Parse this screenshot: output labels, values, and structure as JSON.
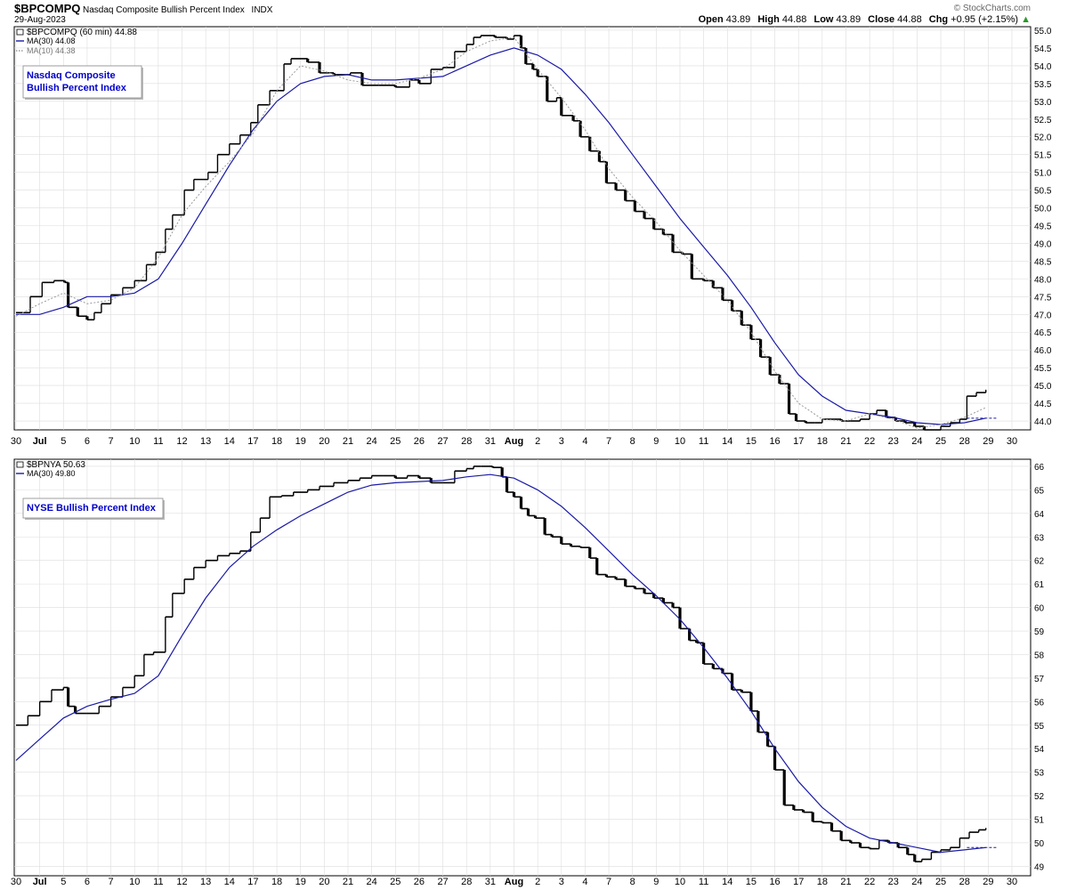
{
  "header": {
    "symbol": "$BPCOMPQ",
    "name": "Nasdaq Composite Bullish Percent Index",
    "exchange": "INDX",
    "date": "29-Aug-2023",
    "watermark": "© StockCharts.com",
    "quote": [
      {
        "label": "Open",
        "value": "43.89"
      },
      {
        "label": "High",
        "value": "44.88"
      },
      {
        "label": "Low",
        "value": "43.89"
      },
      {
        "label": "Close",
        "value": "44.88"
      },
      {
        "label": "Chg",
        "value": "+0.95 (+2.15%)",
        "arrow": "▲"
      }
    ]
  },
  "colors": {
    "ma30": "#1a1aa6",
    "ma10": "#999999",
    "candle": "#000000",
    "grid": "#dddddd",
    "legend_box_text": "#0000cc"
  },
  "x_axis": {
    "labels": [
      "30",
      "Jul",
      "5",
      "6",
      "7",
      "10",
      "11",
      "12",
      "13",
      "14",
      "17",
      "18",
      "19",
      "20",
      "21",
      "24",
      "25",
      "26",
      "27",
      "28",
      "31",
      "Aug",
      "2",
      "3",
      "4",
      "7",
      "8",
      "9",
      "10",
      "11",
      "14",
      "15",
      "16",
      "17",
      "18",
      "21",
      "22",
      "23",
      "24",
      "25",
      "28",
      "29",
      "30"
    ],
    "bold": [
      "Jul",
      "Aug"
    ]
  },
  "chart_data": [
    {
      "type": "ohlc",
      "title": "$BPCOMPQ (60 min) 44.88",
      "legend_box": [
        "Nasdaq Composite",
        "Bullish Percent Index"
      ],
      "legend": [
        {
          "name": "MA(30) 44.08",
          "style": "solid",
          "color": "#1a1aa6"
        },
        {
          "name": "MA(10) 44.38",
          "style": "dotted",
          "color": "#999999"
        }
      ],
      "ylim": [
        43.75,
        55.1
      ],
      "y_ticks": [
        "44.0",
        "44.5",
        "45.0",
        "45.5",
        "46.0",
        "46.5",
        "47.0",
        "47.5",
        "48.0",
        "48.5",
        "49.0",
        "49.5",
        "50.0",
        "50.5",
        "51.0",
        "51.5",
        "52.0",
        "52.5",
        "53.0",
        "53.5",
        "54.0",
        "54.5",
        "55.0"
      ],
      "close": [
        [
          0,
          47.05
        ],
        [
          0.6,
          47.5
        ],
        [
          1.1,
          47.9
        ],
        [
          1.6,
          47.95
        ],
        [
          2.05,
          47.9
        ],
        [
          2.2,
          47.2
        ],
        [
          2.6,
          46.95
        ],
        [
          3.0,
          46.85
        ],
        [
          3.3,
          47.05
        ],
        [
          3.6,
          47.3
        ],
        [
          4.0,
          47.55
        ],
        [
          4.5,
          47.75
        ],
        [
          5.0,
          47.95
        ],
        [
          5.5,
          48.4
        ],
        [
          5.9,
          48.75
        ],
        [
          6.3,
          49.4
        ],
        [
          6.6,
          49.8
        ],
        [
          7.1,
          50.5
        ],
        [
          7.5,
          50.8
        ],
        [
          8.1,
          51.0
        ],
        [
          8.5,
          51.5
        ],
        [
          9.0,
          51.8
        ],
        [
          9.45,
          52.05
        ],
        [
          9.9,
          52.4
        ],
        [
          10.2,
          52.9
        ],
        [
          10.7,
          53.3
        ],
        [
          11.3,
          54.05
        ],
        [
          11.6,
          54.2
        ],
        [
          12.3,
          54.1
        ],
        [
          12.8,
          53.8
        ],
        [
          13.4,
          53.75
        ],
        [
          14.1,
          53.8
        ],
        [
          14.6,
          53.45
        ],
        [
          15.3,
          53.45
        ],
        [
          16.0,
          53.4
        ],
        [
          16.6,
          53.6
        ],
        [
          17.0,
          53.5
        ],
        [
          17.5,
          53.9
        ],
        [
          18.0,
          53.95
        ],
        [
          18.5,
          54.4
        ],
        [
          19.0,
          54.6
        ],
        [
          19.3,
          54.8
        ],
        [
          19.6,
          54.85
        ],
        [
          20.2,
          54.8
        ],
        [
          20.7,
          54.75
        ],
        [
          21.0,
          54.85
        ],
        [
          21.3,
          54.5
        ],
        [
          21.5,
          54.05
        ],
        [
          21.8,
          53.9
        ],
        [
          22.0,
          53.7
        ],
        [
          22.4,
          53.0
        ],
        [
          22.8,
          53.1
        ],
        [
          23.0,
          52.6
        ],
        [
          23.5,
          52.45
        ],
        [
          23.8,
          52.0
        ],
        [
          24.2,
          51.6
        ],
        [
          24.6,
          51.3
        ],
        [
          24.9,
          50.7
        ],
        [
          25.3,
          50.5
        ],
        [
          25.7,
          50.2
        ],
        [
          26.1,
          49.9
        ],
        [
          26.5,
          49.7
        ],
        [
          26.9,
          49.4
        ],
        [
          27.3,
          49.25
        ],
        [
          27.7,
          48.75
        ],
        [
          28.1,
          48.7
        ],
        [
          28.5,
          48.0
        ],
        [
          29.0,
          47.95
        ],
        [
          29.4,
          47.75
        ],
        [
          29.8,
          47.4
        ],
        [
          30.2,
          47.1
        ],
        [
          30.6,
          46.7
        ],
        [
          31.0,
          46.3
        ],
        [
          31.4,
          45.8
        ],
        [
          31.8,
          45.3
        ],
        [
          32.2,
          45.05
        ],
        [
          32.6,
          44.2
        ],
        [
          32.9,
          44.0
        ],
        [
          33.3,
          43.95
        ],
        [
          33.7,
          43.95
        ],
        [
          34.0,
          44.05
        ],
        [
          34.4,
          44.05
        ],
        [
          34.8,
          44.0
        ],
        [
          35.2,
          44.0
        ],
        [
          35.6,
          44.05
        ],
        [
          36.0,
          44.2
        ],
        [
          36.3,
          44.3
        ],
        [
          36.7,
          44.1
        ],
        [
          37.1,
          44.0
        ],
        [
          37.5,
          43.95
        ],
        [
          37.9,
          43.85
        ],
        [
          38.3,
          43.75
        ],
        [
          38.7,
          43.75
        ],
        [
          39.0,
          43.85
        ],
        [
          39.4,
          43.95
        ],
        [
          39.8,
          44.05
        ],
        [
          40.1,
          44.7
        ],
        [
          40.5,
          44.8
        ],
        [
          40.9,
          44.88
        ]
      ],
      "ma30": [
        [
          0,
          47.0
        ],
        [
          1,
          47.0
        ],
        [
          2,
          47.2
        ],
        [
          3,
          47.5
        ],
        [
          4,
          47.5
        ],
        [
          5,
          47.6
        ],
        [
          6,
          48.0
        ],
        [
          7,
          49.0
        ],
        [
          8,
          50.1
        ],
        [
          9,
          51.2
        ],
        [
          10,
          52.2
        ],
        [
          11,
          53.0
        ],
        [
          12,
          53.5
        ],
        [
          13,
          53.7
        ],
        [
          14,
          53.75
        ],
        [
          15,
          53.6
        ],
        [
          16,
          53.6
        ],
        [
          17,
          53.65
        ],
        [
          18,
          53.7
        ],
        [
          19,
          54.0
        ],
        [
          20,
          54.3
        ],
        [
          21,
          54.5
        ],
        [
          22,
          54.3
        ],
        [
          23,
          53.9
        ],
        [
          24,
          53.2
        ],
        [
          25,
          52.4
        ],
        [
          26,
          51.5
        ],
        [
          27,
          50.6
        ],
        [
          28,
          49.7
        ],
        [
          29,
          48.9
        ],
        [
          30,
          48.1
        ],
        [
          31,
          47.2
        ],
        [
          32,
          46.2
        ],
        [
          33,
          45.3
        ],
        [
          34,
          44.7
        ],
        [
          35,
          44.3
        ],
        [
          36,
          44.2
        ],
        [
          37,
          44.1
        ],
        [
          38,
          43.95
        ],
        [
          39,
          43.9
        ],
        [
          40,
          43.95
        ],
        [
          40.9,
          44.08
        ]
      ],
      "ma10": [
        [
          0,
          46.95
        ],
        [
          1,
          47.3
        ],
        [
          2,
          47.6
        ],
        [
          3,
          47.3
        ],
        [
          4,
          47.4
        ],
        [
          5,
          47.75
        ],
        [
          6,
          48.6
        ],
        [
          7,
          49.8
        ],
        [
          8,
          50.6
        ],
        [
          9,
          51.3
        ],
        [
          10,
          52.1
        ],
        [
          11,
          53.3
        ],
        [
          12,
          54.0
        ],
        [
          13,
          53.85
        ],
        [
          14,
          53.6
        ],
        [
          15,
          53.5
        ],
        [
          16,
          53.5
        ],
        [
          17,
          53.65
        ],
        [
          18,
          53.9
        ],
        [
          19,
          54.4
        ],
        [
          20,
          54.7
        ],
        [
          21,
          54.8
        ],
        [
          22,
          53.9
        ],
        [
          23,
          53.1
        ],
        [
          24,
          52.2
        ],
        [
          25,
          51.1
        ],
        [
          26,
          50.3
        ],
        [
          27,
          49.6
        ],
        [
          28,
          48.8
        ],
        [
          29,
          48.1
        ],
        [
          30,
          47.4
        ],
        [
          31,
          46.5
        ],
        [
          32,
          45.4
        ],
        [
          33,
          44.5
        ],
        [
          34,
          44.05
        ],
        [
          35,
          44.0
        ],
        [
          36,
          44.2
        ],
        [
          37,
          44.05
        ],
        [
          38,
          43.8
        ],
        [
          39,
          43.9
        ],
        [
          40,
          44.1
        ],
        [
          40.9,
          44.38
        ]
      ]
    },
    {
      "type": "ohlc",
      "title": "$BPNYA 50.63",
      "legend_box": [
        "NYSE Bullish Percent Index"
      ],
      "legend": [
        {
          "name": "MA(30) 49.80",
          "style": "solid",
          "color": "#1a1aa6"
        }
      ],
      "ylim": [
        48.6,
        66.3
      ],
      "y_ticks": [
        "49",
        "50",
        "51",
        "52",
        "53",
        "54",
        "55",
        "56",
        "57",
        "58",
        "59",
        "60",
        "61",
        "62",
        "63",
        "64",
        "65",
        "66"
      ],
      "close": [
        [
          0,
          55.0
        ],
        [
          0.5,
          55.4
        ],
        [
          1.0,
          56.0
        ],
        [
          1.5,
          56.5
        ],
        [
          2.0,
          56.6
        ],
        [
          2.2,
          55.8
        ],
        [
          2.5,
          55.5
        ],
        [
          3.0,
          55.5
        ],
        [
          3.5,
          55.8
        ],
        [
          4.0,
          56.2
        ],
        [
          4.5,
          56.6
        ],
        [
          5.0,
          57.1
        ],
        [
          5.4,
          58.0
        ],
        [
          5.8,
          58.1
        ],
        [
          6.3,
          59.6
        ],
        [
          6.6,
          60.6
        ],
        [
          7.1,
          61.2
        ],
        [
          7.5,
          61.7
        ],
        [
          8.0,
          62.0
        ],
        [
          8.5,
          62.2
        ],
        [
          9.0,
          62.3
        ],
        [
          9.45,
          62.4
        ],
        [
          9.9,
          63.2
        ],
        [
          10.3,
          63.8
        ],
        [
          10.7,
          64.7
        ],
        [
          11.2,
          64.75
        ],
        [
          11.7,
          64.9
        ],
        [
          12.3,
          65.0
        ],
        [
          12.8,
          65.15
        ],
        [
          13.4,
          65.3
        ],
        [
          14.0,
          65.4
        ],
        [
          14.5,
          65.5
        ],
        [
          15.0,
          65.6
        ],
        [
          15.5,
          65.6
        ],
        [
          16.0,
          65.5
        ],
        [
          16.5,
          65.6
        ],
        [
          17.0,
          65.5
        ],
        [
          17.5,
          65.3
        ],
        [
          18.0,
          65.3
        ],
        [
          18.5,
          65.8
        ],
        [
          19.0,
          65.9
        ],
        [
          19.3,
          66.0
        ],
        [
          19.6,
          66.0
        ],
        [
          20.1,
          65.95
        ],
        [
          20.5,
          65.55
        ],
        [
          20.7,
          64.9
        ],
        [
          21.0,
          64.7
        ],
        [
          21.3,
          64.2
        ],
        [
          21.6,
          63.9
        ],
        [
          21.9,
          63.8
        ],
        [
          22.3,
          63.1
        ],
        [
          22.6,
          63.0
        ],
        [
          23.0,
          62.7
        ],
        [
          23.4,
          62.6
        ],
        [
          23.8,
          62.55
        ],
        [
          24.2,
          62.1
        ],
        [
          24.5,
          61.4
        ],
        [
          24.9,
          61.3
        ],
        [
          25.3,
          61.2
        ],
        [
          25.7,
          60.9
        ],
        [
          26.1,
          60.8
        ],
        [
          26.5,
          60.6
        ],
        [
          26.9,
          60.4
        ],
        [
          27.3,
          60.2
        ],
        [
          27.7,
          60.0
        ],
        [
          28.0,
          59.1
        ],
        [
          28.4,
          58.6
        ],
        [
          28.7,
          58.5
        ],
        [
          29.0,
          57.6
        ],
        [
          29.4,
          57.4
        ],
        [
          29.8,
          57.2
        ],
        [
          30.2,
          56.5
        ],
        [
          30.6,
          56.4
        ],
        [
          31.0,
          55.6
        ],
        [
          31.3,
          54.7
        ],
        [
          31.7,
          54.1
        ],
        [
          32.0,
          53.1
        ],
        [
          32.4,
          51.6
        ],
        [
          32.8,
          51.4
        ],
        [
          33.2,
          51.3
        ],
        [
          33.6,
          50.9
        ],
        [
          34.0,
          50.85
        ],
        [
          34.4,
          50.5
        ],
        [
          34.8,
          50.1
        ],
        [
          35.2,
          50.0
        ],
        [
          35.6,
          49.8
        ],
        [
          36.0,
          49.75
        ],
        [
          36.4,
          50.1
        ],
        [
          36.8,
          50.0
        ],
        [
          37.2,
          49.8
        ],
        [
          37.6,
          49.5
        ],
        [
          37.9,
          49.2
        ],
        [
          38.2,
          49.3
        ],
        [
          38.6,
          49.6
        ],
        [
          39.0,
          49.7
        ],
        [
          39.4,
          49.8
        ],
        [
          39.8,
          50.2
        ],
        [
          40.2,
          50.45
        ],
        [
          40.6,
          50.55
        ],
        [
          40.9,
          50.63
        ]
      ],
      "ma30": [
        [
          0,
          53.5
        ],
        [
          1,
          54.4
        ],
        [
          2,
          55.3
        ],
        [
          3,
          55.8
        ],
        [
          4,
          56.1
        ],
        [
          5,
          56.35
        ],
        [
          6,
          57.1
        ],
        [
          7,
          58.8
        ],
        [
          8,
          60.4
        ],
        [
          9,
          61.7
        ],
        [
          10,
          62.6
        ],
        [
          11,
          63.3
        ],
        [
          12,
          63.9
        ],
        [
          13,
          64.4
        ],
        [
          14,
          64.9
        ],
        [
          15,
          65.2
        ],
        [
          16,
          65.3
        ],
        [
          17,
          65.35
        ],
        [
          18,
          65.4
        ],
        [
          19,
          65.55
        ],
        [
          20,
          65.65
        ],
        [
          21,
          65.5
        ],
        [
          22,
          65.0
        ],
        [
          23,
          64.3
        ],
        [
          24,
          63.4
        ],
        [
          25,
          62.4
        ],
        [
          26,
          61.4
        ],
        [
          27,
          60.5
        ],
        [
          28,
          59.5
        ],
        [
          29,
          58.3
        ],
        [
          30,
          57.0
        ],
        [
          31,
          55.6
        ],
        [
          32,
          54.0
        ],
        [
          33,
          52.6
        ],
        [
          34,
          51.5
        ],
        [
          35,
          50.7
        ],
        [
          36,
          50.2
        ],
        [
          37,
          50.0
        ],
        [
          38,
          49.8
        ],
        [
          39,
          49.6
        ],
        [
          40,
          49.7
        ],
        [
          40.9,
          49.8
        ]
      ]
    }
  ]
}
